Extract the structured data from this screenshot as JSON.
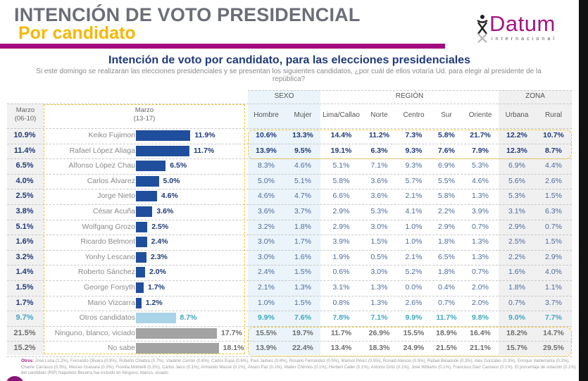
{
  "header": {
    "title": "INTENCIÓN DE VOTO PRESIDENCIAL",
    "subtitle": "Por candidato",
    "logo": {
      "name": "Datum",
      "tagline": "internacional",
      "glyph": "Ϫ"
    }
  },
  "colors": {
    "accent_purple": "#a10b7e",
    "subtitle_yellow": "#f5b800",
    "bar_blue": "#1f4e9c",
    "bar_light_blue": "#a9d3e6",
    "bar_grey": "#a3a3a3",
    "highlight_yellow": "#f2c230",
    "text_dark_blue": "#1f3a7a",
    "text_teal": "#3ea6c4",
    "text_grey": "#6d6d6d"
  },
  "chart_data": {
    "type": "table",
    "title": "Intención de voto por candidato, para las elecciones presidenciales",
    "question": "Si este domingo se realizaran las elecciones presidenciales y se presentan los siguientes candidatos, ¿por cuál de ellos votaría Ud. para elegir al presidente de la república?",
    "previous_label": "Marzo\n(06-10)",
    "previous_label_lines": [
      "Marzo",
      "(06-10)"
    ],
    "current_label_lines": [
      "Marzo",
      "(13-17)"
    ],
    "bar_axis_max": 20,
    "groups": [
      {
        "name": "SEXO",
        "columns": [
          "Hombre",
          "Mujer"
        ]
      },
      {
        "name": "REGIÓN",
        "columns": [
          "Lima/Callao",
          "Norte",
          "Centro",
          "Sur",
          "Oriente"
        ]
      },
      {
        "name": "ZONA",
        "columns": [
          "Urbana",
          "Rural"
        ]
      }
    ],
    "columns": [
      "Hombre",
      "Mujer",
      "Lima/Callao",
      "Norte",
      "Centro",
      "Sur",
      "Oriente",
      "Urbana",
      "Rural"
    ],
    "rows": [
      {
        "candidate": "Keiko Fujimori",
        "previous": "10.9%",
        "current": 11.9,
        "current_label": "11.9%",
        "kind": "top",
        "values": [
          "10.6%",
          "13.3%",
          "14.4%",
          "11.2%",
          "7.3%",
          "5.8%",
          "21.7%",
          "12.2%",
          "10.7%"
        ]
      },
      {
        "candidate": "Rafael López Aliaga",
        "previous": "11.4%",
        "current": 11.7,
        "current_label": "11.7%",
        "kind": "top",
        "values": [
          "13.9%",
          "9.5%",
          "19.1%",
          "6.3%",
          "9.3%",
          "7.6%",
          "7.9%",
          "12.3%",
          "8.7%"
        ]
      },
      {
        "candidate": "Alfonso López Chau",
        "previous": "6.5%",
        "current": 6.5,
        "current_label": "6.5%",
        "kind": "normal",
        "values": [
          "8.3%",
          "4.6%",
          "5.1%",
          "7.1%",
          "9.3%",
          "6.9%",
          "5.3%",
          "6.9%",
          "4.4%"
        ]
      },
      {
        "candidate": "Carlos Álvarez",
        "previous": "4.0%",
        "current": 5.0,
        "current_label": "5.0%",
        "kind": "normal",
        "values": [
          "5.0%",
          "5.1%",
          "5.8%",
          "3.6%",
          "5.7%",
          "5.5%",
          "4.6%",
          "5.6%",
          "2.6%"
        ]
      },
      {
        "candidate": "Jorge Nieto",
        "previous": "2.5%",
        "current": 4.6,
        "current_label": "4.6%",
        "kind": "normal",
        "values": [
          "4.6%",
          "4.7%",
          "6.6%",
          "3.6%",
          "2.1%",
          "5.8%",
          "1.3%",
          "5.3%",
          "1.5%"
        ]
      },
      {
        "candidate": "César Acuña",
        "previous": "3.8%",
        "current": 3.6,
        "current_label": "3.6%",
        "kind": "normal",
        "values": [
          "3.6%",
          "3.7%",
          "2.9%",
          "5.3%",
          "4.1%",
          "2.2%",
          "3.9%",
          "3.1%",
          "6.3%"
        ]
      },
      {
        "candidate": "Wolfgang Grozo",
        "previous": "5.1%",
        "current": 2.5,
        "current_label": "2.5%",
        "kind": "normal",
        "values": [
          "3.2%",
          "1.8%",
          "2.9%",
          "3.0%",
          "1.0%",
          "2.9%",
          "0.7%",
          "2.9%",
          "0.7%"
        ]
      },
      {
        "candidate": "Ricardo Belmont",
        "previous": "1.6%",
        "current": 2.4,
        "current_label": "2.4%",
        "kind": "normal",
        "values": [
          "3.0%",
          "1.7%",
          "3.9%",
          "1.5%",
          "1.0%",
          "1.8%",
          "1.3%",
          "2.5%",
          "1.5%"
        ]
      },
      {
        "candidate": "Yonhy Lescano",
        "previous": "3.2%",
        "current": 2.3,
        "current_label": "2.3%",
        "kind": "normal",
        "values": [
          "3.0%",
          "1.6%",
          "1.9%",
          "0.5%",
          "2.1%",
          "6.5%",
          "1.3%",
          "2.2%",
          "2.9%"
        ]
      },
      {
        "candidate": "Roberto Sánchez",
        "previous": "1.4%",
        "current": 2.0,
        "current_label": "2.0%",
        "kind": "normal",
        "values": [
          "2.4%",
          "1.5%",
          "0.6%",
          "3.0%",
          "5.2%",
          "1.8%",
          "0.7%",
          "1.6%",
          "4.0%"
        ]
      },
      {
        "candidate": "George Forsyth",
        "previous": "1.5%",
        "current": 1.7,
        "current_label": "1.7%",
        "kind": "normal",
        "values": [
          "2.1%",
          "1.3%",
          "3.1%",
          "1.3%",
          "0.0%",
          "0.4%",
          "2.0%",
          "1.8%",
          "1.1%"
        ]
      },
      {
        "candidate": "Mario Vizcarra",
        "previous": "1.7%",
        "current": 1.2,
        "current_label": "1.2%",
        "kind": "normal",
        "values": [
          "1.0%",
          "1.5%",
          "0.8%",
          "1.3%",
          "2.6%",
          "0.7%",
          "2.0%",
          "0.7%",
          "3.7%"
        ]
      },
      {
        "candidate": "Otros candidatos",
        "previous": "9.7%",
        "current": 8.7,
        "current_label": "8.7%",
        "kind": "others",
        "values": [
          "9.9%",
          "7.6%",
          "7.8%",
          "7.1%",
          "9.9%",
          "11.7%",
          "9.8%",
          "9.0%",
          "7.7%"
        ]
      },
      {
        "candidate": "Ninguno, blanco, viciado",
        "previous": "21.5%",
        "current": 17.7,
        "current_label": "17.7%",
        "kind": "none",
        "values": [
          "15.5%",
          "19.7%",
          "11.7%",
          "26.9%",
          "15.5%",
          "18.9%",
          "16.4%",
          "18.2%",
          "14.7%"
        ]
      },
      {
        "candidate": "No sabe",
        "previous": "15.2%",
        "current": 18.1,
        "current_label": "18.1%",
        "kind": "none",
        "values": [
          "13.9%",
          "22.4%",
          "13.4%",
          "18.3%",
          "24.9%",
          "21.5%",
          "21.1%",
          "15.7%",
          "29.5%"
        ]
      }
    ]
  },
  "footnote": {
    "label": "Otros:",
    "text": "José Luna (1.2%), Fernando Olivera (0.9%), Roberto Chiabra (0.7%), Vladimir Cerrón (0.6%), Carlos Espá (0.6%), Paul Jaimes (0.6%), Rosario Fernández (0.5%), Marisol Pérez (0.5%), Ronald Atencio (0.5%), Rafael Belaúnde (0.3%), Alex Gonzáles (0.3%), Enrique Valderrama (0.3%), Charlie Carrasco (0.3%), Mesías Guevara (0.3%), Fiorella Molinelli (0.3%), Carlos Jaico (0.1%), Armando Massé (0.1%), Álvaro Paz (0.1%), Walter Chirinos (0.1%), Herbert Caller (0.1%), Antonio Ortiz (0.1%), José Williams (0.1%), Francisco Diez Canseco (0.1%).   El porcentaje de votación (0.1%) del candidato (RIP) Napoleón Becerra fue incluido en Ninguno, blanco, viciado"
  }
}
